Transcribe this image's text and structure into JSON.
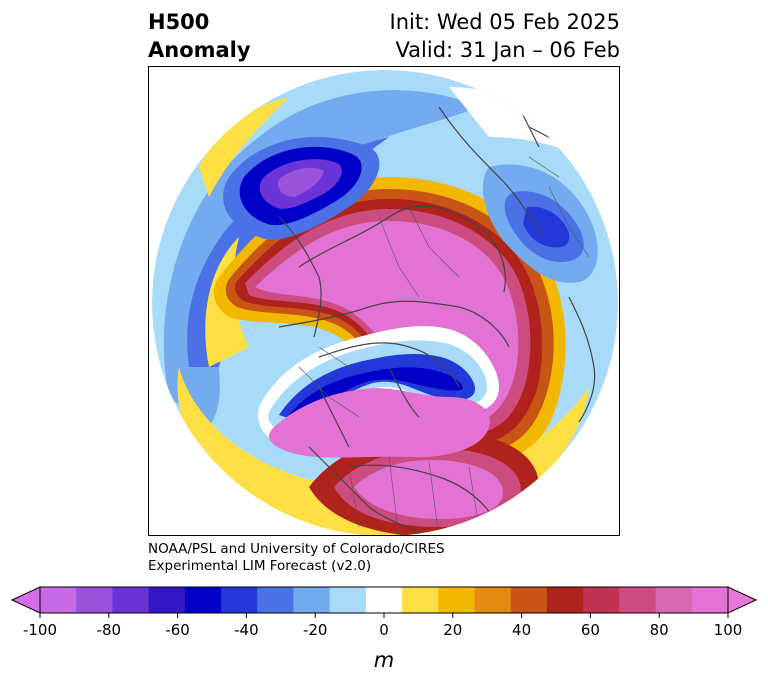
{
  "title": {
    "left_line1": "H500",
    "left_line2": "Anomaly",
    "right_line1": "Init: Wed 05 Feb 2025",
    "right_line2": "Valid: 31 Jan – 06 Feb"
  },
  "credit": {
    "line1": "NOAA/PSL and University of Colorado/CIRES",
    "line2": "Experimental LIM Forecast (v2.0)"
  },
  "colorbar": {
    "unit": "m",
    "levels": [
      -100,
      -90,
      -80,
      -70,
      -60,
      -50,
      -40,
      -30,
      -20,
      -10,
      10,
      20,
      30,
      40,
      50,
      60,
      70,
      80,
      90,
      100
    ],
    "colors": [
      "#c86ae6",
      "#9a52dc",
      "#6a34d6",
      "#3418c8",
      "#0000c8",
      "#2238d8",
      "#4a72e6",
      "#74aaf0",
      "#a8dafa",
      "#ffffff",
      "#ffe044",
      "#f2b800",
      "#e08a10",
      "#c85416",
      "#b0221c",
      "#c03050",
      "#cc4c80",
      "#d866b0",
      "#e272d4"
    ],
    "under_color": "#d66ee8",
    "over_color": "#e878d8",
    "tick_labels": [
      "-100",
      "-80",
      "-60",
      "-40",
      "-20",
      "0",
      "20",
      "40",
      "60",
      "80",
      "100"
    ]
  }
}
